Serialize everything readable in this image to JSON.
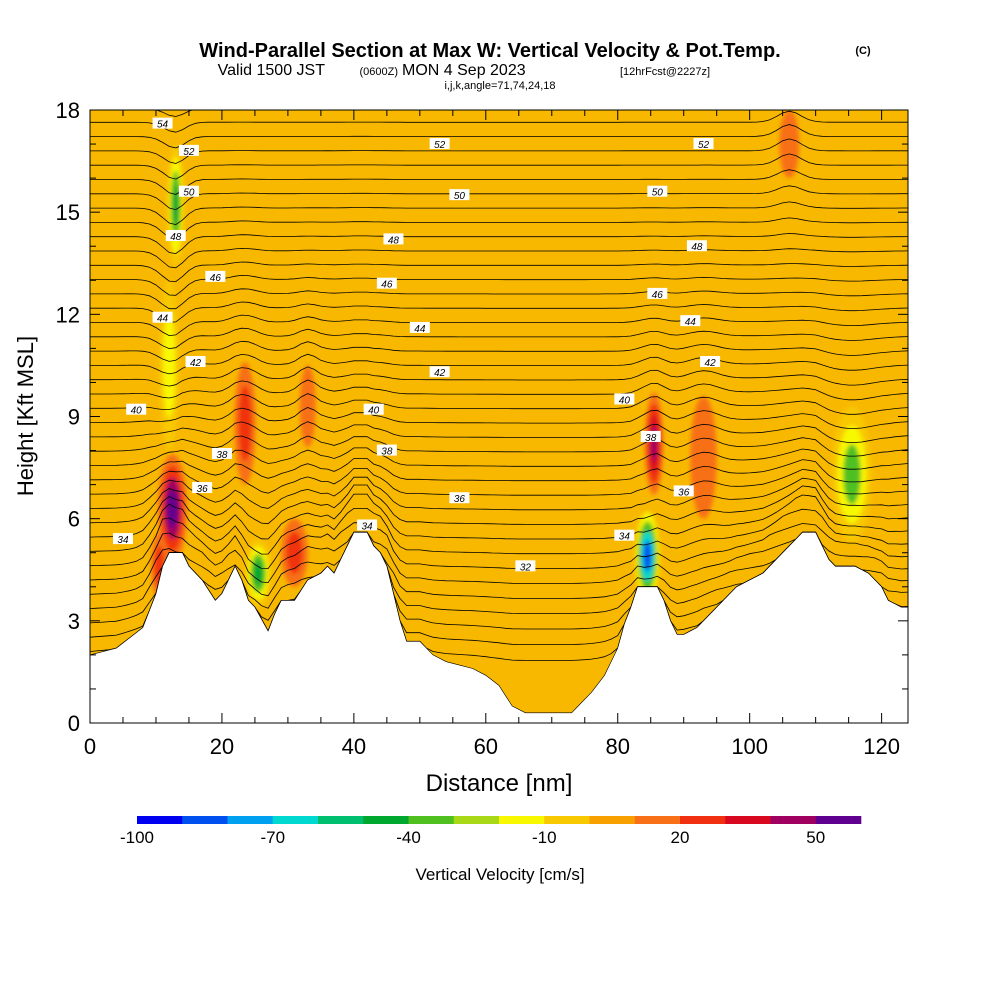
{
  "header": {
    "title": "Wind-Parallel Section at Max W: Vertical Velocity & Pot.Temp.",
    "copyright": "(C)",
    "valid_prefix": "Valid 1500 JST",
    "valid_utc": "(0600Z)",
    "valid_date": "MON 4 Sep 2023",
    "forecast": "[12hrFcst@2227z]",
    "indices": "i,j,k,angle=71,74,24,18"
  },
  "chart_data": {
    "type": "heatmap",
    "xlabel": "Distance [nm]",
    "ylabel": "Height [Kft MSL]",
    "xlim": [
      0,
      124
    ],
    "ylim": [
      0,
      18
    ],
    "x_ticks": [
      0,
      20,
      40,
      60,
      80,
      100,
      120
    ],
    "y_ticks": [
      0,
      3,
      6,
      9,
      12,
      15,
      18
    ],
    "colorbar": {
      "label": "Vertical Velocity [cm/s]",
      "tick_labels": [
        "-100",
        "-70",
        "-40",
        "-10",
        "20",
        "50"
      ],
      "tick_values": [
        -100,
        -70,
        -40,
        -10,
        20,
        50
      ],
      "levels": [
        -100,
        -90,
        -80,
        -70,
        -60,
        -50,
        -40,
        -30,
        -20,
        -10,
        0,
        10,
        20,
        30,
        40,
        50,
        60
      ],
      "colors": [
        "#0000f0",
        "#0050f0",
        "#00a0f0",
        "#00d8d0",
        "#00c070",
        "#00a830",
        "#50c020",
        "#a8d818",
        "#f8f800",
        "#f8c800",
        "#f8a000",
        "#f87018",
        "#f03010",
        "#d80820",
        "#a00060",
        "#600090"
      ]
    },
    "background_color": "#f8b800",
    "terrain_profile": [
      [
        0,
        2
      ],
      [
        4,
        2.2
      ],
      [
        8,
        2.8
      ],
      [
        10,
        3.8
      ],
      [
        11,
        4.6
      ],
      [
        12,
        5
      ],
      [
        14,
        5
      ],
      [
        15,
        4.6
      ],
      [
        17,
        4.2
      ],
      [
        19,
        3.6
      ],
      [
        20,
        3.8
      ],
      [
        21,
        4.2
      ],
      [
        22,
        4.6
      ],
      [
        23,
        4.2
      ],
      [
        24,
        3.6
      ],
      [
        25,
        3.4
      ],
      [
        27,
        2.7
      ],
      [
        28,
        3.2
      ],
      [
        29,
        3.6
      ],
      [
        31,
        3.6
      ],
      [
        33,
        4.2
      ],
      [
        35,
        4.4
      ],
      [
        36,
        4.6
      ],
      [
        37,
        4.4
      ],
      [
        38,
        4.8
      ],
      [
        39,
        5.2
      ],
      [
        40,
        5.6
      ],
      [
        42,
        5.6
      ],
      [
        43,
        5.2
      ],
      [
        44,
        5
      ],
      [
        45,
        4.6
      ],
      [
        46,
        3.8
      ],
      [
        47,
        3
      ],
      [
        48,
        2.4
      ],
      [
        50,
        2.4
      ],
      [
        52,
        2
      ],
      [
        54,
        1.8
      ],
      [
        56,
        1.7
      ],
      [
        58,
        1.6
      ],
      [
        60,
        1.4
      ],
      [
        62,
        1.1
      ],
      [
        63,
        0.8
      ],
      [
        64,
        0.5
      ],
      [
        66,
        0.3
      ],
      [
        68,
        0.3
      ],
      [
        70,
        0.3
      ],
      [
        73,
        0.3
      ],
      [
        74,
        0.5
      ],
      [
        76,
        0.9
      ],
      [
        78,
        1.4
      ],
      [
        79,
        1.8
      ],
      [
        80,
        2.2
      ],
      [
        81,
        2.9
      ],
      [
        82,
        3.4
      ],
      [
        83,
        4
      ],
      [
        86,
        4
      ],
      [
        87,
        3.6
      ],
      [
        88,
        3
      ],
      [
        89,
        2.6
      ],
      [
        90,
        2.6
      ],
      [
        92,
        2.8
      ],
      [
        94,
        3.2
      ],
      [
        96,
        3.6
      ],
      [
        98,
        4
      ],
      [
        100,
        4.2
      ],
      [
        102,
        4.4
      ],
      [
        104,
        4.8
      ],
      [
        106,
        5.2
      ],
      [
        108,
        5.6
      ],
      [
        110,
        5.6
      ],
      [
        111,
        5.2
      ],
      [
        112,
        4.8
      ],
      [
        113,
        4.6
      ],
      [
        116,
        4.6
      ],
      [
        118,
        4.4
      ],
      [
        120,
        4
      ],
      [
        121,
        3.6
      ],
      [
        123,
        3.4
      ],
      [
        124,
        3.4
      ]
    ],
    "theta_contours": [
      {
        "value": 32,
        "label": "32",
        "x": 66,
        "y": 4.6
      },
      {
        "value": 34,
        "label": "34",
        "x": 5,
        "y": 5.4
      },
      {
        "value": 34,
        "label": "34",
        "x": 42,
        "y": 5.8
      },
      {
        "value": 34,
        "label": "34",
        "x": 81,
        "y": 5.5
      },
      {
        "value": 36,
        "label": "36",
        "x": 17,
        "y": 6.9
      },
      {
        "value": 36,
        "label": "36",
        "x": 56,
        "y": 6.6
      },
      {
        "value": 36,
        "label": "36",
        "x": 90,
        "y": 6.8
      },
      {
        "value": 38,
        "label": "38",
        "x": 20,
        "y": 7.9
      },
      {
        "value": 38,
        "label": "38",
        "x": 45,
        "y": 8.0
      },
      {
        "value": 38,
        "label": "38",
        "x": 85,
        "y": 8.4
      },
      {
        "value": 40,
        "label": "40",
        "x": 7,
        "y": 9.2
      },
      {
        "value": 40,
        "label": "40",
        "x": 43,
        "y": 9.2
      },
      {
        "value": 40,
        "label": "40",
        "x": 81,
        "y": 9.5
      },
      {
        "value": 42,
        "label": "42",
        "x": 16,
        "y": 10.6
      },
      {
        "value": 42,
        "label": "42",
        "x": 53,
        "y": 10.3
      },
      {
        "value": 42,
        "label": "42",
        "x": 94,
        "y": 10.6
      },
      {
        "value": 44,
        "label": "44",
        "x": 11,
        "y": 11.9
      },
      {
        "value": 44,
        "label": "44",
        "x": 50,
        "y": 11.6
      },
      {
        "value": 44,
        "label": "44",
        "x": 91,
        "y": 11.8
      },
      {
        "value": 46,
        "label": "46",
        "x": 19,
        "y": 13.1
      },
      {
        "value": 46,
        "label": "46",
        "x": 45,
        "y": 12.9
      },
      {
        "value": 46,
        "label": "46",
        "x": 86,
        "y": 12.6
      },
      {
        "value": 48,
        "label": "48",
        "x": 13,
        "y": 14.3
      },
      {
        "value": 48,
        "label": "48",
        "x": 46,
        "y": 14.2
      },
      {
        "value": 48,
        "label": "48",
        "x": 92,
        "y": 14.0
      },
      {
        "value": 50,
        "label": "50",
        "x": 15,
        "y": 15.6
      },
      {
        "value": 50,
        "label": "50",
        "x": 56,
        "y": 15.5
      },
      {
        "value": 50,
        "label": "50",
        "x": 86,
        "y": 15.6
      },
      {
        "value": 52,
        "label": "52",
        "x": 15,
        "y": 16.8
      },
      {
        "value": 52,
        "label": "52",
        "x": 53,
        "y": 17.0
      },
      {
        "value": 52,
        "label": "52",
        "x": 93,
        "y": 17.0
      },
      {
        "value": 54,
        "label": "54",
        "x": 11,
        "y": 17.6
      }
    ],
    "velocity_features": [
      {
        "x": 13,
        "y": 15.2,
        "rx": 1.3,
        "ry": 1.8,
        "values": [
          -10,
          -20,
          -40,
          -50
        ]
      },
      {
        "x": 12,
        "y": 10.5,
        "rx": 1.5,
        "ry": 2.5,
        "values": [
          -10,
          -20
        ]
      },
      {
        "x": 12.5,
        "y": 6.3,
        "rx": 2.2,
        "ry": 1.6,
        "values": [
          10,
          20,
          40,
          60
        ]
      },
      {
        "x": 10.5,
        "y": 4.6,
        "rx": 1.2,
        "ry": 1.0,
        "values": [
          10,
          20
        ]
      },
      {
        "x": 23.5,
        "y": 8.8,
        "rx": 1.6,
        "ry": 1.8,
        "values": [
          10,
          20
        ]
      },
      {
        "x": 25.5,
        "y": 4.4,
        "rx": 2.0,
        "ry": 1.0,
        "values": [
          -10,
          -20,
          -40,
          -50
        ]
      },
      {
        "x": 31,
        "y": 5.0,
        "rx": 2.0,
        "ry": 1.0,
        "values": [
          10,
          20
        ]
      },
      {
        "x": 33,
        "y": 9.3,
        "rx": 1.2,
        "ry": 1.2,
        "values": [
          10
        ]
      },
      {
        "x": 85.5,
        "y": 8.2,
        "rx": 1.4,
        "ry": 1.5,
        "values": [
          10,
          20,
          30,
          40
        ]
      },
      {
        "x": 84.5,
        "y": 4.9,
        "rx": 1.8,
        "ry": 1.3,
        "values": [
          -20,
          -40,
          -70,
          -90
        ]
      },
      {
        "x": 93,
        "y": 7.8,
        "rx": 2.0,
        "ry": 1.8,
        "values": [
          10
        ]
      },
      {
        "x": 115.5,
        "y": 7.3,
        "rx": 3.0,
        "ry": 2.0,
        "values": [
          -10,
          -20,
          -40
        ]
      },
      {
        "x": 106,
        "y": 17.0,
        "rx": 1.5,
        "ry": 1.0,
        "values": [
          10
        ]
      }
    ]
  }
}
